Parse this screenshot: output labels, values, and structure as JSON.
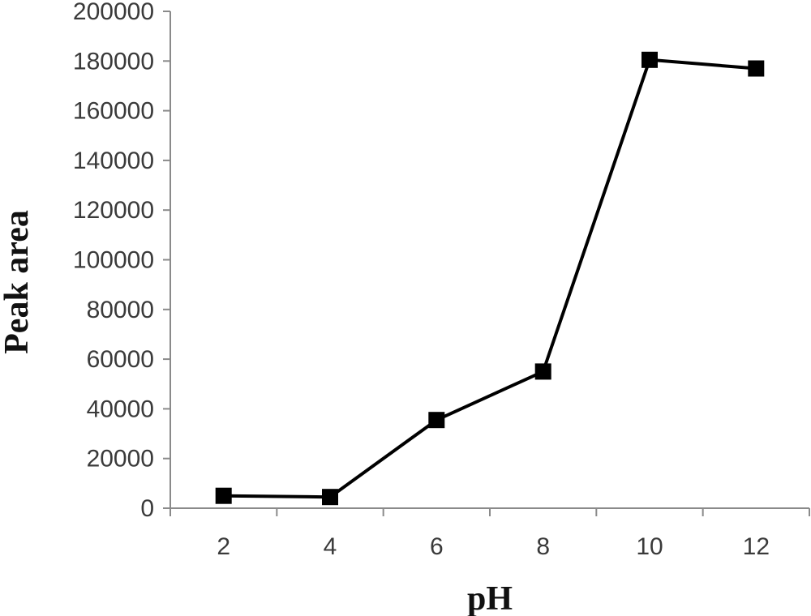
{
  "chart_data": {
    "type": "line",
    "xlabel": "pH",
    "ylabel": "Peak area",
    "categories": [
      "2",
      "4",
      "6",
      "8",
      "10",
      "12"
    ],
    "x": [
      2,
      4,
      6,
      8,
      10,
      12
    ],
    "series": [
      {
        "values": [
          5000,
          4500,
          35500,
          55000,
          180500,
          177000
        ]
      }
    ],
    "ylim": [
      0,
      200000
    ],
    "yticks": [
      0,
      20000,
      40000,
      60000,
      80000,
      100000,
      120000,
      140000,
      160000,
      180000,
      200000
    ],
    "ytick_labels": [
      "0",
      "20000",
      "40000",
      "60000",
      "80000",
      "100000",
      "120000",
      "140000",
      "160000",
      "180000",
      "200000"
    ],
    "grid": false,
    "legend": "none",
    "marker": "square",
    "colors": {
      "line": "#000000",
      "axis": "#8a8a8a",
      "text": "#3a3a3a"
    }
  }
}
